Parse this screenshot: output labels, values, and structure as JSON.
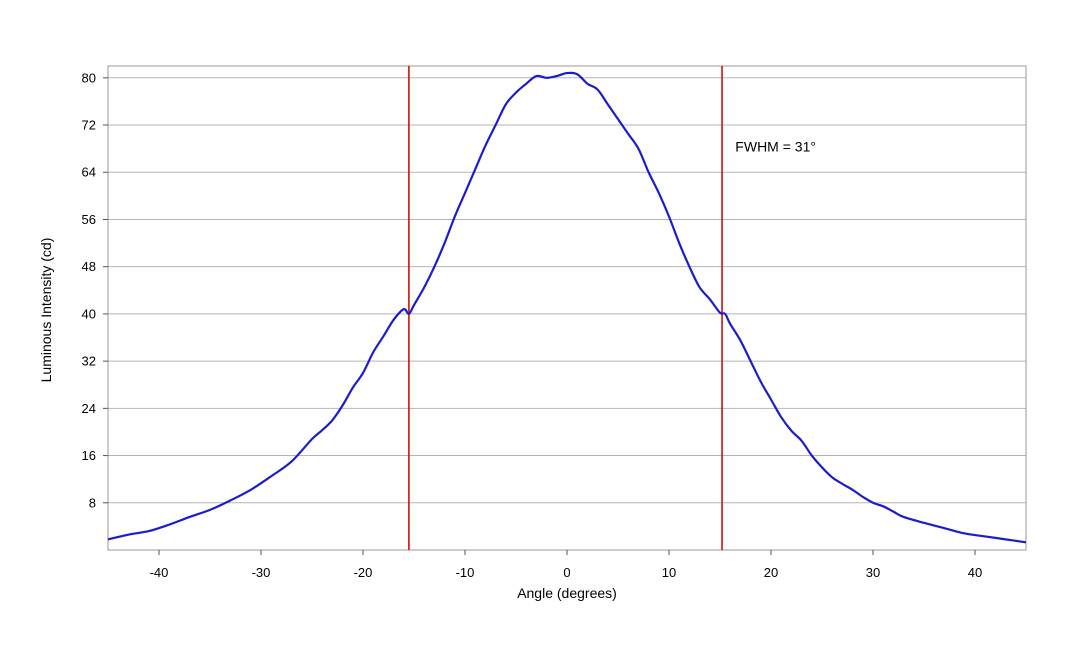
{
  "chart_data": {
    "type": "line",
    "title": "",
    "xlabel": "Angle (degrees)",
    "ylabel": "Luminous Intensity (cd)",
    "xlim": [
      -45,
      45
    ],
    "ylim": [
      0,
      82
    ],
    "x_ticks": [
      -40,
      -30,
      -20,
      -10,
      0,
      10,
      20,
      30,
      40
    ],
    "y_ticks": [
      8,
      16,
      24,
      32,
      40,
      48,
      56,
      64,
      72,
      80
    ],
    "grid": "horizontal",
    "series": [
      {
        "color": "#1c1ccf",
        "x": [
          -45,
          -43,
          -41,
          -39,
          -37,
          -35,
          -33,
          -31,
          -29,
          -27,
          -25,
          -24,
          -23,
          -22,
          -21,
          -20,
          -19,
          -18,
          -17,
          -16,
          -15.5,
          -15,
          -14,
          -13,
          -12,
          -11,
          -10,
          -9,
          -8,
          -7,
          -6,
          -5,
          -4,
          -3,
          -2,
          -1,
          0,
          1,
          2,
          3,
          4,
          5,
          6,
          7,
          8,
          9,
          10,
          11,
          12,
          13,
          14,
          15,
          15.5,
          16,
          17,
          18,
          19,
          20,
          21,
          22,
          23,
          24,
          25,
          26,
          27,
          28,
          29,
          30,
          31,
          32,
          33,
          35,
          37,
          39,
          41,
          43,
          45
        ],
        "y": [
          1.8,
          2.6,
          3.2,
          4.3,
          5.6,
          6.8,
          8.4,
          10.2,
          12.5,
          15.0,
          18.8,
          20.3,
          22.0,
          24.5,
          27.5,
          30.0,
          33.5,
          36.2,
          39.0,
          40.8,
          40.0,
          41.5,
          44.5,
          48.0,
          52.0,
          56.5,
          60.5,
          64.5,
          68.5,
          72.0,
          75.5,
          77.5,
          79.0,
          80.3,
          80.0,
          80.3,
          80.8,
          80.6,
          79.0,
          78.0,
          75.5,
          73.0,
          70.5,
          68.0,
          64.0,
          60.5,
          56.5,
          52.0,
          48.0,
          44.5,
          42.5,
          40.2,
          40.0,
          38.3,
          35.5,
          32.0,
          28.5,
          25.5,
          22.5,
          20.2,
          18.5,
          16.0,
          14.0,
          12.3,
          11.2,
          10.2,
          9.0,
          8.0,
          7.4,
          6.5,
          5.6,
          4.6,
          3.7,
          2.8,
          2.3,
          1.8,
          1.3
        ]
      }
    ],
    "vertical_lines": [
      {
        "x": -15.5,
        "color": "#cc1111"
      },
      {
        "x": 15.2,
        "color": "#cc1111"
      }
    ],
    "annotation": {
      "text": "FWHM = 31°",
      "x": 16.5,
      "y": 67.5
    }
  }
}
